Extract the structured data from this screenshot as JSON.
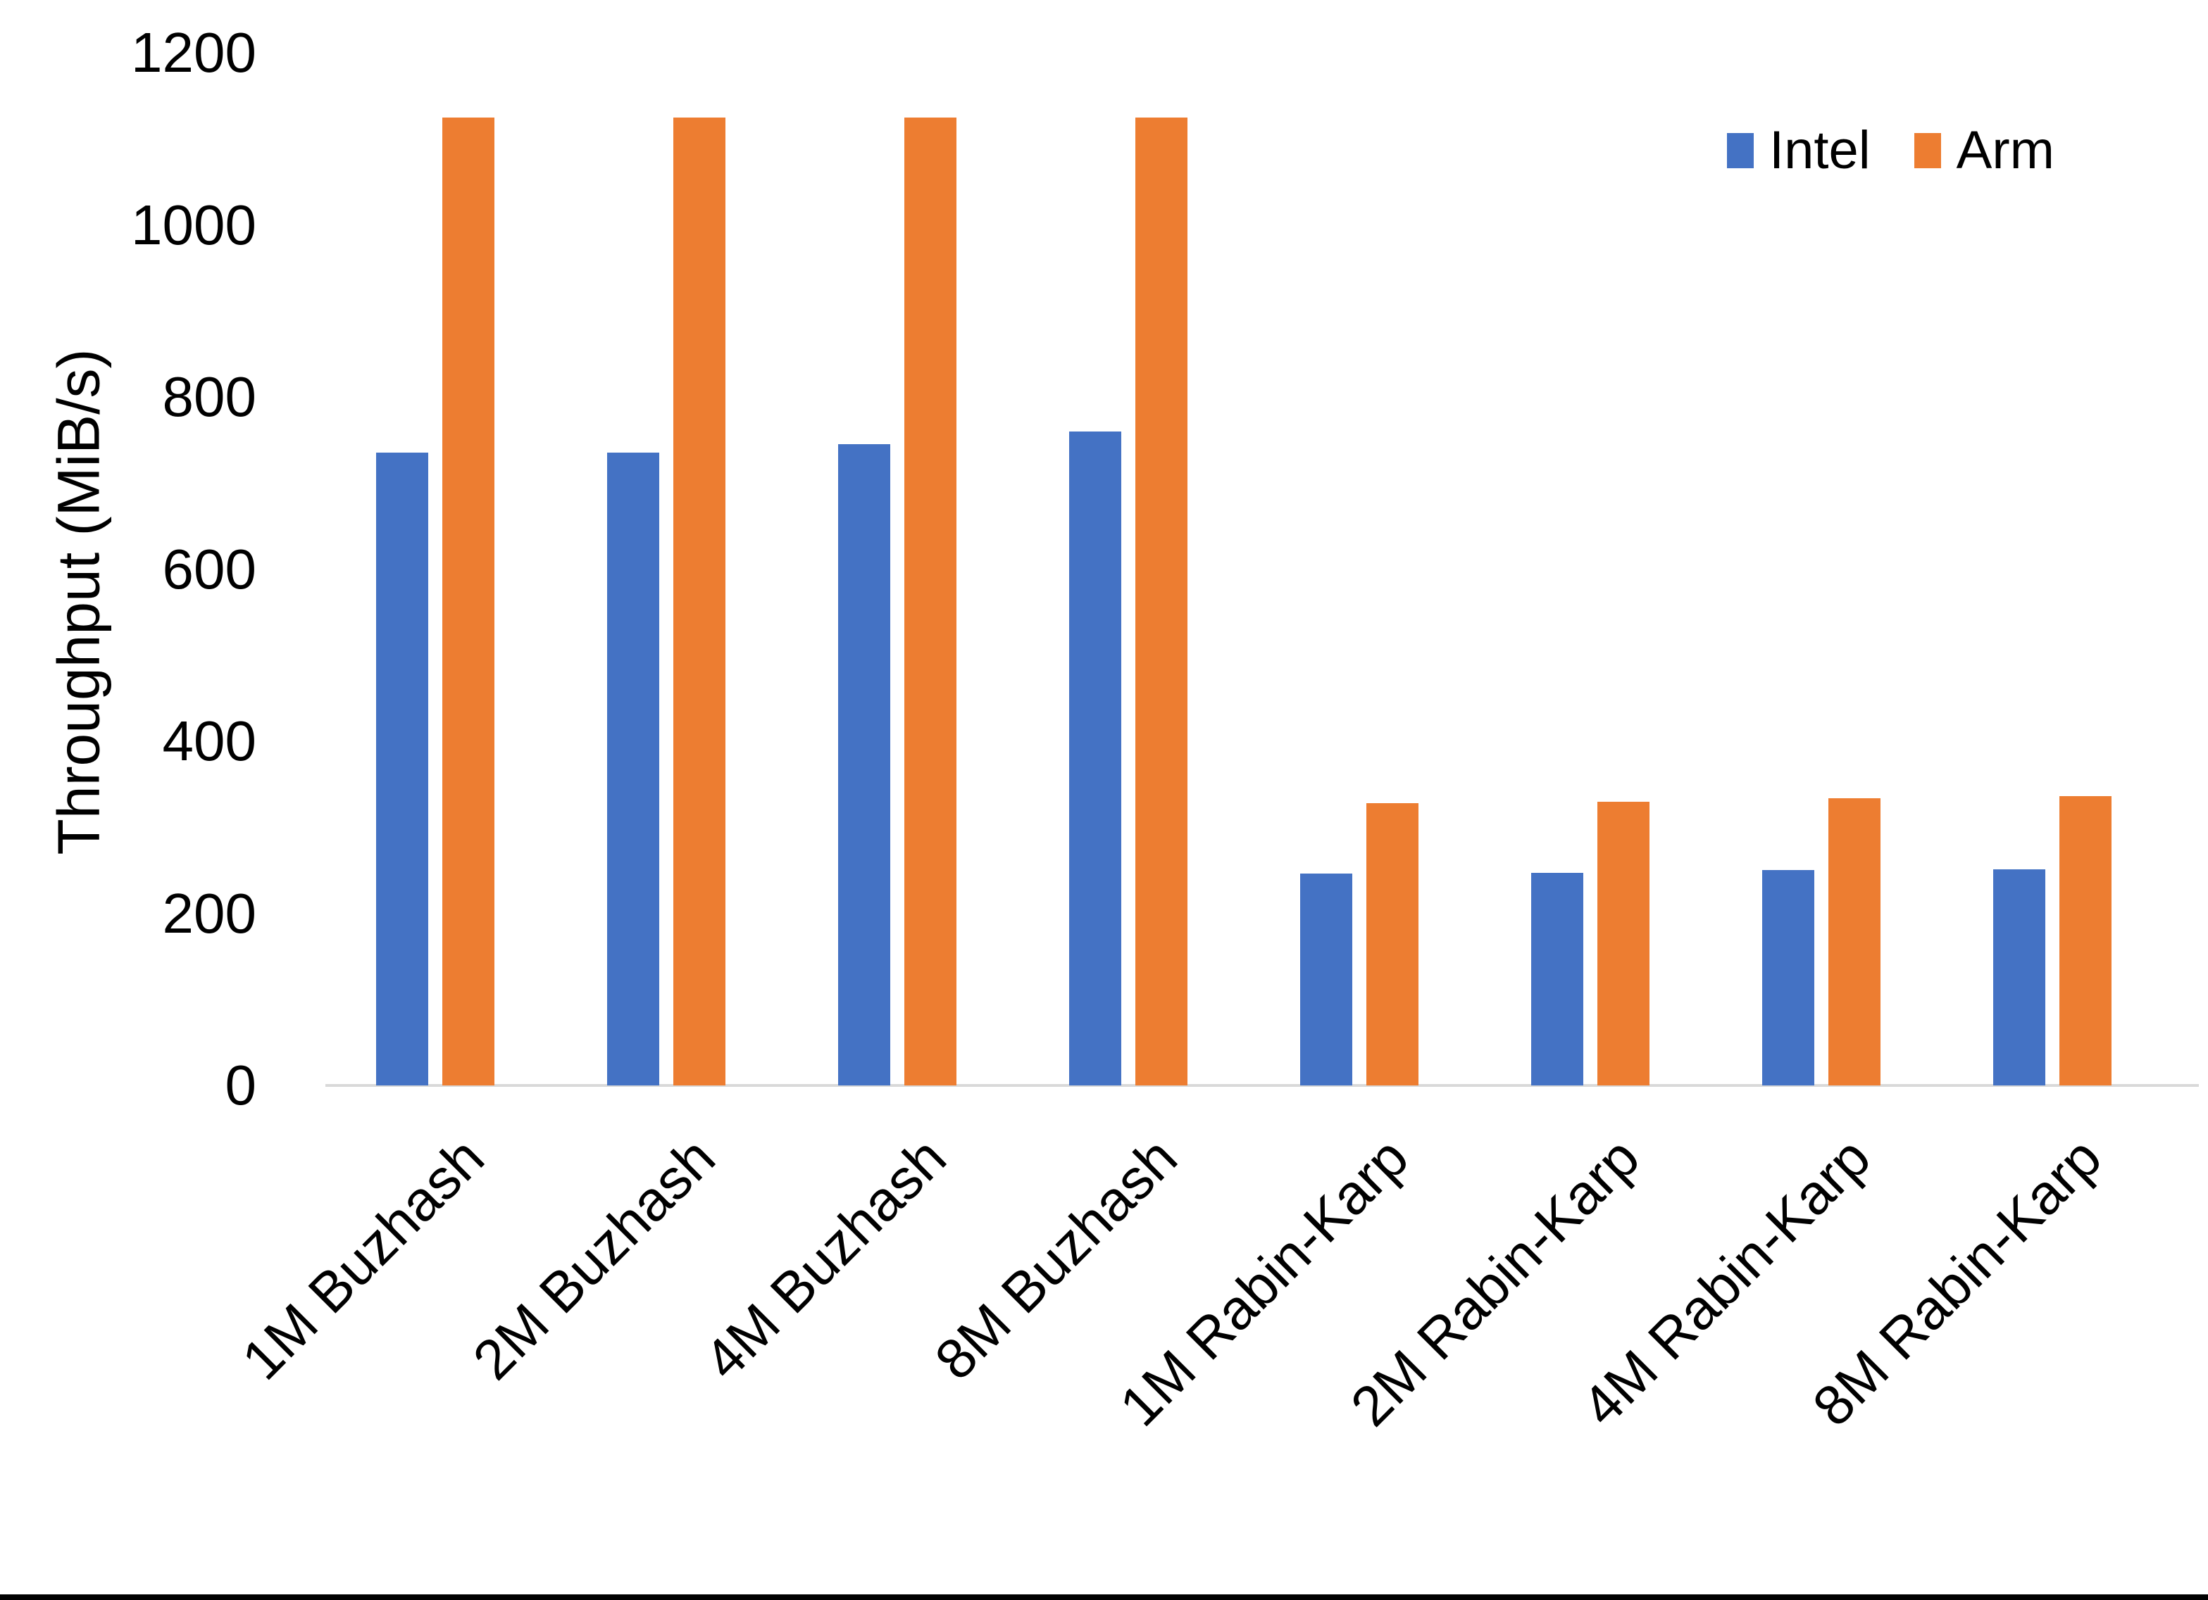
{
  "chart_data": {
    "type": "bar",
    "categories": [
      "1M Buzhash",
      "2M Buzhash",
      "4M Buzhash",
      "8M Buzhash",
      "1M Rabin-Karp",
      "2M Rabin-Karp",
      "4M Rabin-Karp",
      "8M Rabin-Karp"
    ],
    "series": [
      {
        "name": "Intel",
        "color": "#4472C4",
        "values": [
          735,
          735,
          745,
          760,
          246,
          247,
          250,
          251
        ]
      },
      {
        "name": "Arm",
        "color": "#ED7D31",
        "values": [
          1125,
          1125,
          1125,
          1125,
          328,
          330,
          334,
          336
        ]
      }
    ],
    "title": "",
    "xlabel": "",
    "ylabel": "Throughput (MiB/s)",
    "ylim": [
      0,
      1200
    ],
    "yticks": [
      0,
      200,
      400,
      600,
      800,
      1000,
      1200
    ],
    "grid": false,
    "legend_position": "top-right",
    "colors": {
      "axis_line": "#d9d9d9",
      "text": "#000000",
      "bottom_border": "#000000"
    }
  }
}
